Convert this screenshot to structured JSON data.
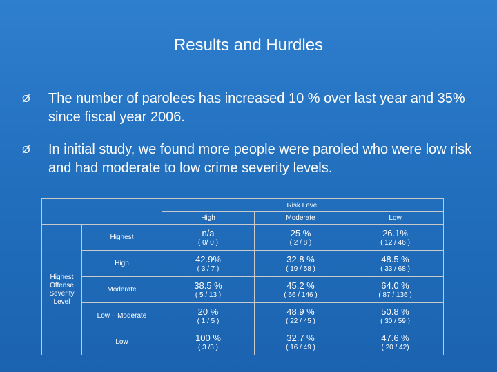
{
  "title": "Results and Hurdles",
  "bullets": [
    "The number of parolees has increased 10 % over last year and 35% since fiscal year 2006.",
    "In initial study, we found more people were paroled who were low risk and had moderate to low crime severity levels."
  ],
  "bullet_marker": "Ø",
  "table": {
    "risk_header": "Risk Level",
    "side_label": "Highest Offense Severity Level",
    "columns": [
      "High",
      "Moderate",
      "Low"
    ],
    "rows": [
      {
        "label": "Highest",
        "cells": [
          {
            "pct": "n/a",
            "cnt": "( 0/ 0 )"
          },
          {
            "pct": "25 %",
            "cnt": "( 2 / 8 )"
          },
          {
            "pct": "26.1%",
            "cnt": "( 12 / 46 )"
          }
        ]
      },
      {
        "label": "High",
        "cells": [
          {
            "pct": "42.9%",
            "cnt": "( 3 / 7 )"
          },
          {
            "pct": "32.8 %",
            "cnt": "( 19 / 58 )"
          },
          {
            "pct": "48.5 %",
            "cnt": "( 33 / 68 )"
          }
        ]
      },
      {
        "label": "Moderate",
        "cells": [
          {
            "pct": "38.5 %",
            "cnt": "( 5 / 13 )"
          },
          {
            "pct": "45.2 %",
            "cnt": "( 66 / 146 )"
          },
          {
            "pct": "64.0 %",
            "cnt": "( 87 / 136 )"
          }
        ]
      },
      {
        "label": "Low – Moderate",
        "cells": [
          {
            "pct": "20 %",
            "cnt": "( 1 / 5 )"
          },
          {
            "pct": "48.9 %",
            "cnt": "( 22 / 45 )"
          },
          {
            "pct": "50.8 %",
            "cnt": "( 30 / 59 )"
          }
        ]
      },
      {
        "label": "Low",
        "cells": [
          {
            "pct": "100 %",
            "cnt": "( 3 /3 )"
          },
          {
            "pct": "32.7 %",
            "cnt": "( 16 / 49 )"
          },
          {
            "pct": "47.6 %",
            "cnt": "( 20 / 42)"
          }
        ]
      }
    ]
  }
}
